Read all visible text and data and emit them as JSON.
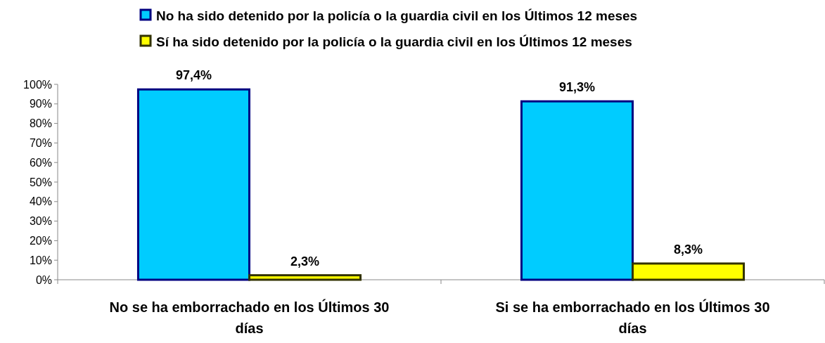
{
  "chart_data": {
    "type": "bar",
    "categories": [
      "No se ha emborrachado en los Últimos 30 días",
      "Si se ha emborrachado en los Últimos 30 días"
    ],
    "series": [
      {
        "name": "No ha sido detenido por la policía o la guardia civil en los Últimos 12 meses",
        "color": "#00ccff",
        "values": [
          97.4,
          91.3
        ],
        "value_labels": [
          "97,4%",
          "91,3%"
        ]
      },
      {
        "name": "Sí ha sido detenido por la policía o la guardia civil en los Últimos 12 meses",
        "color": "#ffff00",
        "values": [
          2.3,
          8.3
        ],
        "value_labels": [
          "2,3%",
          "8,3%"
        ]
      }
    ],
    "ylim": [
      0,
      100
    ],
    "yticks": [
      {
        "value": 0,
        "label": "0%"
      },
      {
        "value": 10,
        "label": "10%"
      },
      {
        "value": 20,
        "label": "20%"
      },
      {
        "value": 30,
        "label": "30%"
      },
      {
        "value": 40,
        "label": "40%"
      },
      {
        "value": 50,
        "label": "50%"
      },
      {
        "value": 60,
        "label": "60%"
      },
      {
        "value": 70,
        "label": "70%"
      },
      {
        "value": 80,
        "label": "80%"
      },
      {
        "value": 90,
        "label": "90%"
      },
      {
        "value": 100,
        "label": "100%"
      }
    ],
    "grid": false,
    "legend": "top"
  }
}
